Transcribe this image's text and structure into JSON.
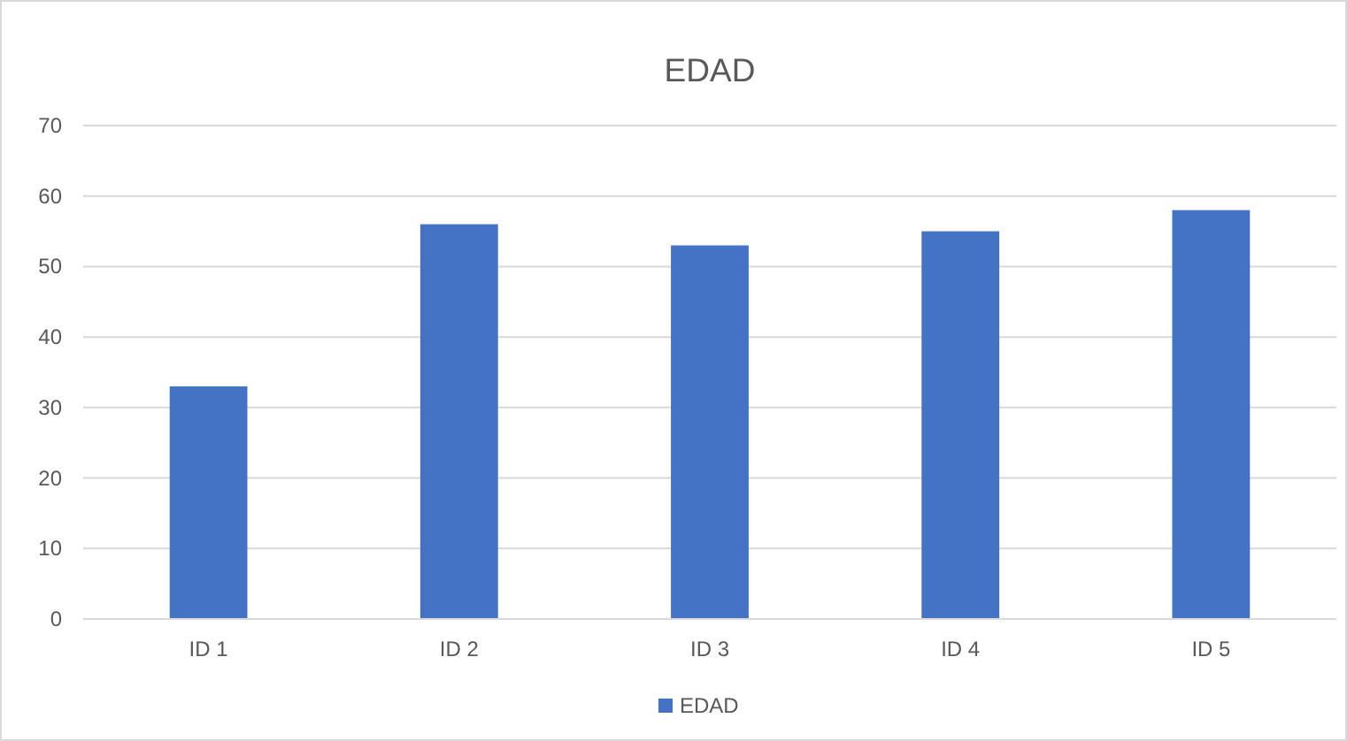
{
  "chart_data": {
    "type": "bar",
    "title": "EDAD",
    "categories": [
      "ID 1",
      "ID 2",
      "ID 3",
      "ID 4",
      "ID 5"
    ],
    "series": [
      {
        "name": "EDAD",
        "color": "#4472c4",
        "values": [
          33,
          56,
          53,
          55,
          58
        ]
      }
    ],
    "ylim": [
      0,
      70
    ],
    "yticks": [
      0,
      10,
      20,
      30,
      40,
      50,
      60,
      70
    ],
    "grid": "y",
    "legend": "bottom"
  }
}
